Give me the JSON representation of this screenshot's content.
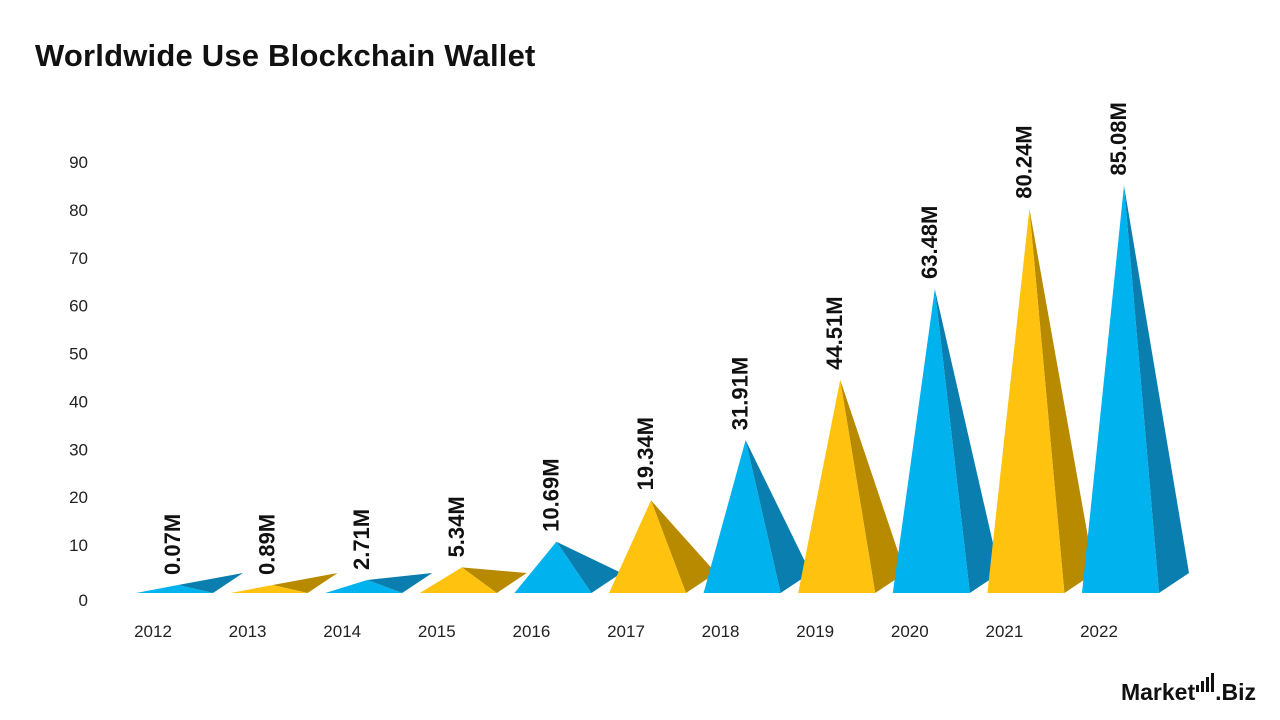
{
  "title": "Worldwide Use Blockchain Wallet",
  "logo": {
    "left": "Market",
    "right": ".Biz"
  },
  "colors": {
    "blue_front": "#00B2EE",
    "blue_side": "#0A7FAF",
    "yellow_front": "#FFC20E",
    "yellow_side": "#B88A00",
    "axis_text": "#222222",
    "label_text": "#111111"
  },
  "chart_data": {
    "type": "bar",
    "shape": "pyramid",
    "title": "Worldwide Use Blockchain Wallet",
    "xlabel": "",
    "ylabel": "",
    "ylim": [
      0,
      90
    ],
    "yticks": [
      0,
      10,
      20,
      30,
      40,
      50,
      60,
      70,
      80,
      90
    ],
    "grid": false,
    "categories": [
      "2012",
      "2013",
      "2014",
      "2015",
      "2016",
      "2017",
      "2018",
      "2019",
      "2020",
      "2021",
      "2022"
    ],
    "values": [
      0.07,
      0.89,
      2.71,
      5.34,
      10.69,
      19.34,
      31.91,
      44.51,
      63.48,
      80.24,
      85.08
    ],
    "data_labels": [
      "0.07M",
      "0.89M",
      "2.71M",
      "5.34M",
      "10.69M",
      "19.34M",
      "31.91M",
      "44.51M",
      "63.48M",
      "80.24M",
      "85.08M"
    ],
    "colors": [
      "blue",
      "yellow",
      "blue",
      "yellow",
      "blue",
      "yellow",
      "blue",
      "yellow",
      "blue",
      "yellow",
      "blue"
    ]
  }
}
